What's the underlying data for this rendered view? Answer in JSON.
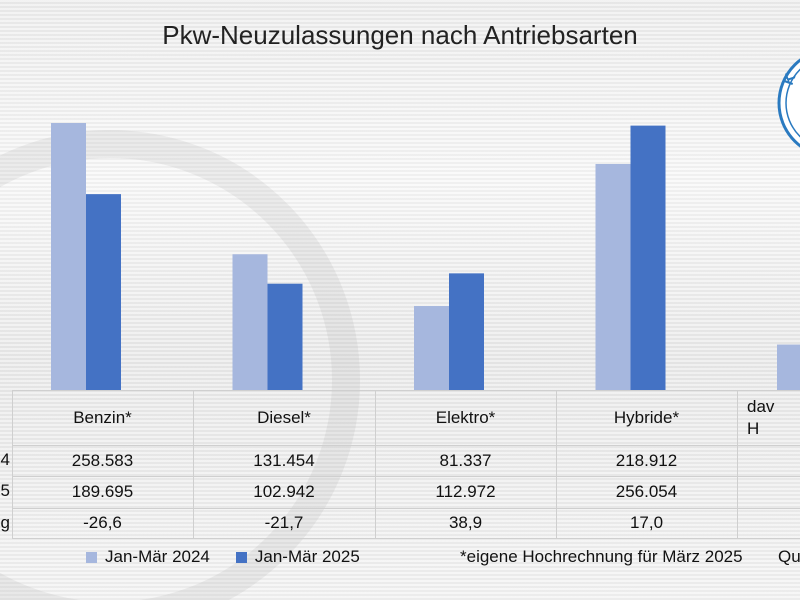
{
  "chart_data": {
    "type": "bar",
    "title": "Pkw-Neuzulassungen nach Antriebsarten",
    "categories": [
      "Benzin*",
      "Diesel*",
      "Elektro*",
      "Hybride*",
      "dav\nH"
    ],
    "series": [
      {
        "name": "Jan-Mär 2024",
        "color": "#a6b7de",
        "values": [
          258583,
          131454,
          81337,
          218912,
          44000
        ]
      },
      {
        "name": "Jan-Mär 2025",
        "color": "#4472c4",
        "values": [
          189695,
          102942,
          112972,
          256054,
          null
        ]
      }
    ],
    "ylim": [
      0,
      260000
    ],
    "grid": false,
    "legend": "bottom"
  },
  "table": {
    "row_labels": [
      "4",
      "5",
      "g"
    ],
    "rows": [
      [
        "258.583",
        "131.454",
        "81.337",
        "218.912"
      ],
      [
        "189.695",
        "102.942",
        "112.972",
        "256.054"
      ],
      [
        "-26,6",
        "-21,7",
        "38,9",
        "17,0"
      ]
    ]
  },
  "footnote": "*eigene Hochrechnung für März 2025",
  "source_fragment": "Qu",
  "logo_text": "K"
}
